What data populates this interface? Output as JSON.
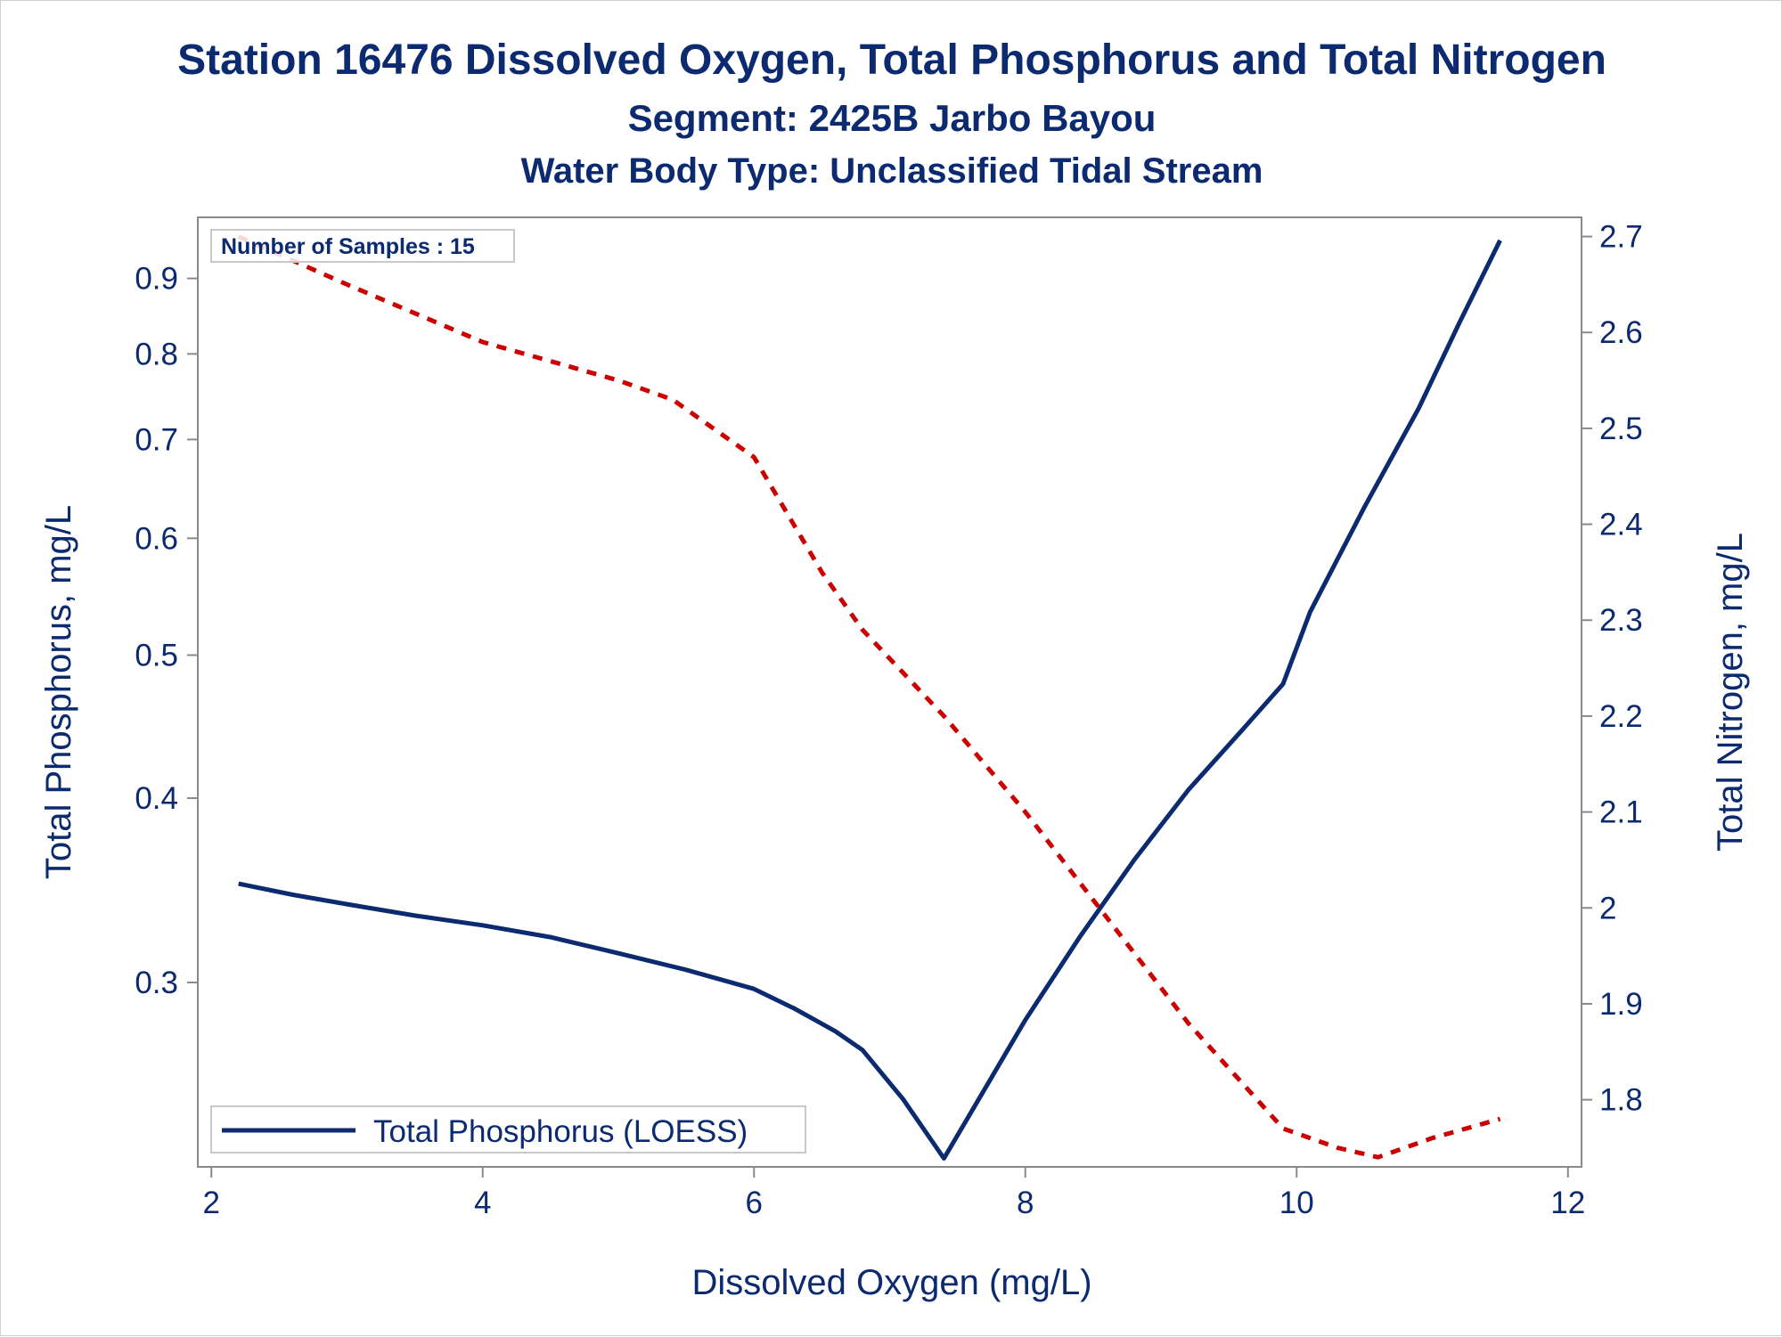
{
  "titles": {
    "line1": "Station 16476  Dissolved Oxygen, Total Phosphorus and Total Nitrogen",
    "line2": "Segment: 2425B  Jarbo Bayou",
    "line3": "Water Body Type: Unclassified Tidal Stream"
  },
  "inset_label": "Number of Samples : 15",
  "legend": {
    "placement": "bottom-left",
    "entries": [
      "Total Phosphorus (LOESS)"
    ]
  },
  "colors": {
    "text": "#0b2a6f",
    "phosphorus_line": "#0b2a6f",
    "nitrogen_line": "#cc0000",
    "axis": "#8a8a8a"
  },
  "chart_data": {
    "type": "line",
    "xlabel": "Dissolved Oxygen (mg/L)",
    "ylabel_left": "Total Phosphorus, mg/L",
    "ylabel_right": "Total Nitrogen, mg/L",
    "xlim": [
      1.9,
      12.1
    ],
    "x_ticks": [
      2,
      4,
      6,
      8,
      10,
      12
    ],
    "y_left_scale": "log",
    "y_left_lim": [
      0.225,
      0.99
    ],
    "y_left_ticks": [
      0.3,
      0.4,
      0.5,
      0.6,
      0.7,
      0.8,
      0.9
    ],
    "y_right_lim": [
      1.73,
      2.72
    ],
    "y_right_ticks": [
      1.8,
      1.9,
      2,
      2.1,
      2.2,
      2.3,
      2.4,
      2.5,
      2.6,
      2.7
    ],
    "grid": false,
    "series": [
      {
        "name": "Total Phosphorus (LOESS)",
        "axis": "left",
        "style": "solid",
        "color": "#0b2a6f",
        "x": [
          2.2,
          2.6,
          3.0,
          3.5,
          4.0,
          4.5,
          5.0,
          5.5,
          6.0,
          6.3,
          6.6,
          6.8,
          7.1,
          7.4,
          7.6,
          8.0,
          8.4,
          8.8,
          9.2,
          9.6,
          9.9,
          10.1,
          10.5,
          10.9,
          11.2,
          11.5
        ],
        "values": [
          0.35,
          0.344,
          0.339,
          0.333,
          0.328,
          0.322,
          0.314,
          0.306,
          0.297,
          0.288,
          0.278,
          0.27,
          0.25,
          0.228,
          0.245,
          0.283,
          0.322,
          0.363,
          0.405,
          0.445,
          0.478,
          0.535,
          0.63,
          0.735,
          0.84,
          0.955
        ]
      },
      {
        "name": "",
        "axis": "right",
        "style": "dashed",
        "color": "#cc0000",
        "x": [
          2.2,
          3.0,
          4.0,
          4.5,
          5.0,
          5.4,
          6.0,
          6.5,
          6.8,
          7.4,
          8.0,
          8.6,
          9.2,
          9.9,
          10.3,
          10.6,
          11.0,
          11.5
        ],
        "values": [
          2.7,
          2.65,
          2.59,
          2.57,
          2.55,
          2.53,
          2.47,
          2.35,
          2.29,
          2.2,
          2.1,
          1.99,
          1.88,
          1.77,
          1.75,
          1.74,
          1.76,
          1.78
        ]
      }
    ]
  }
}
